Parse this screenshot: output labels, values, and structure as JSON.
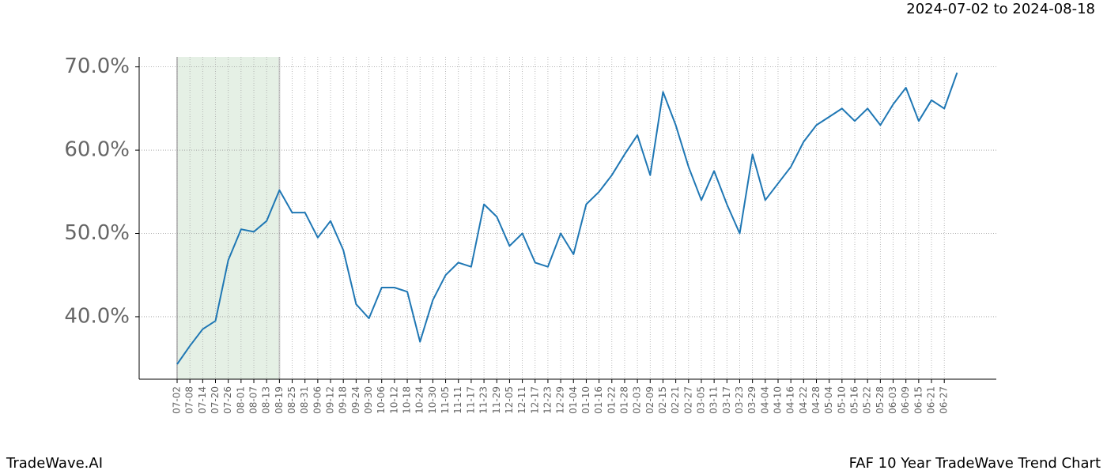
{
  "chart_data": {
    "type": "line",
    "title": "FAF 10 Year TradeWave Trend Chart",
    "subtitle": "2024-07-02 to 2024-08-18",
    "watermark": "TradeWave.AI",
    "categories": [
      "07-02",
      "07-08",
      "07-14",
      "07-20",
      "07-26",
      "08-01",
      "08-07",
      "08-13",
      "08-19",
      "08-25",
      "08-31",
      "09-06",
      "09-12",
      "09-18",
      "09-24",
      "09-30",
      "10-06",
      "10-12",
      "10-18",
      "10-24",
      "10-30",
      "11-05",
      "11-11",
      "11-17",
      "11-23",
      "11-29",
      "12-05",
      "12-11",
      "12-17",
      "12-23",
      "12-29",
      "01-04",
      "01-10",
      "01-16",
      "01-22",
      "01-28",
      "02-03",
      "02-09",
      "02-15",
      "02-21",
      "02-27",
      "03-05",
      "03-11",
      "03-17",
      "03-23",
      "03-29",
      "04-04",
      "04-10",
      "04-16",
      "04-22",
      "04-28",
      "05-04",
      "05-10",
      "05-16",
      "05-22",
      "05-28",
      "06-03",
      "06-09",
      "06-15",
      "06-21",
      "06-27",
      null
    ],
    "values": [
      34.3,
      36.5,
      38.5,
      39.5,
      46.8,
      50.5,
      50.2,
      51.5,
      55.2,
      52.5,
      52.5,
      49.5,
      51.5,
      48,
      41.5,
      39.8,
      43.5,
      43.5,
      43,
      37,
      42,
      45,
      46.5,
      46,
      53.5,
      52,
      48.5,
      50,
      46.5,
      46,
      50,
      47.5,
      53.5,
      55,
      57,
      59.5,
      61.8,
      57,
      67,
      63,
      58,
      54,
      57.5,
      53.5,
      50,
      59.5,
      54,
      56,
      58,
      61,
      63,
      64,
      65,
      63.5,
      65,
      63,
      65.5,
      67.5,
      63.5,
      66,
      65,
      69.3
    ],
    "color": "#1f77b4",
    "ylim": [
      32.5,
      71.2
    ],
    "yticks": [
      {
        "value": 40,
        "label": "40.0%"
      },
      {
        "value": 50,
        "label": "50.0%"
      },
      {
        "value": 60,
        "label": "60.0%"
      },
      {
        "value": 70,
        "label": "70.0%"
      }
    ],
    "grid": true
  }
}
